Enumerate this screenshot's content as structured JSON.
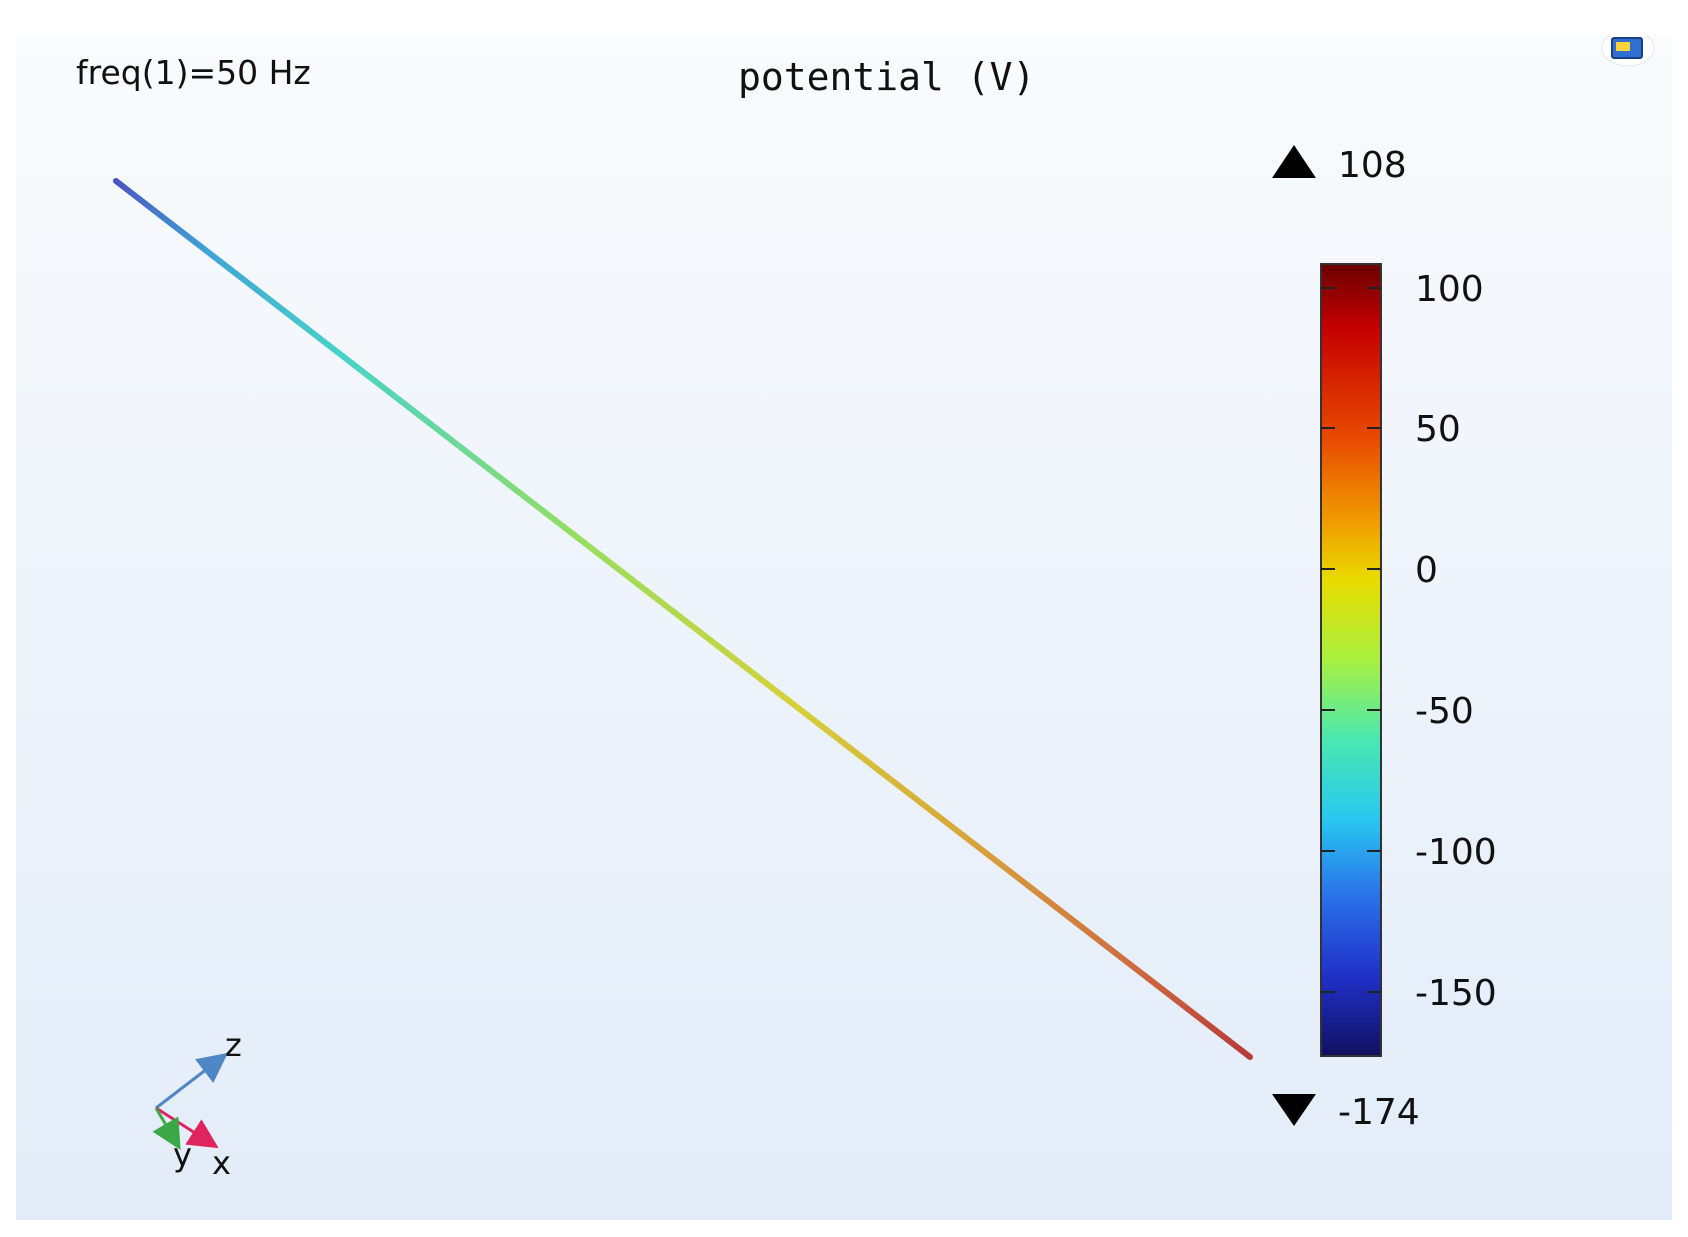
{
  "plot": {
    "parameter_label": "freq(1)=50 Hz",
    "title": "potential (V)",
    "axis_labels": {
      "x": "x",
      "y": "y",
      "z": "z"
    }
  },
  "colorbar": {
    "max_label": "108",
    "min_label": "-174",
    "ticks": [
      "100",
      "50",
      "0",
      "-50",
      "-100",
      "-150"
    ],
    "colormap": "rainbow"
  },
  "chart_data": {
    "type": "line",
    "title": "potential (V)",
    "parameter": "freq(1)=50 Hz",
    "unit": "V",
    "range": [
      -174,
      108
    ],
    "colorbar_ticks": [
      100,
      50,
      0,
      -50,
      -100,
      -150
    ],
    "line_potential_start_to_end": [
      -135,
      108
    ]
  },
  "colors": {
    "axis_x": "#e0245e",
    "axis_y": "#3aa845",
    "axis_z": "#4f86c6",
    "line_start": "#4a56c0",
    "line_end": "#b83a3a"
  },
  "icons": {
    "toolbar": "image-snapshot-icon"
  }
}
